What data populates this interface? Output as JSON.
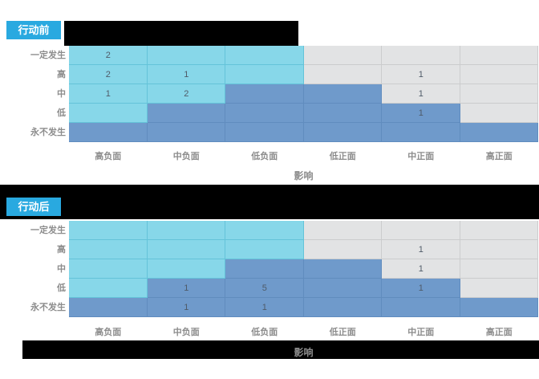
{
  "colors": {
    "chip": "#29A9E0",
    "cell_cyan": "#87D7E9",
    "line_cyan": "#64C3D9",
    "cell_gray": "#E2E3E4",
    "line_gray": "#CBCCCD",
    "cell_blue": "#6F9ACB",
    "line_blue": "#608CBE",
    "label": "#8C8C8C",
    "value": "#4F5B68",
    "redaction": "#000000"
  },
  "chart_data": [
    {
      "type": "heatmap",
      "section_tag": "行动前",
      "row_labels": [
        "一定发生",
        "高",
        "中",
        "低",
        "永不发生"
      ],
      "col_labels": [
        "高负面",
        "中负面",
        "低负面",
        "低正面",
        "中正面",
        "高正面"
      ],
      "xlabel": "影响",
      "zones": [
        [
          "cyan",
          "cyan",
          "cyan",
          "gray",
          "gray",
          "gray"
        ],
        [
          "cyan",
          "cyan",
          "cyan",
          "gray",
          "gray",
          "gray"
        ],
        [
          "cyan",
          "cyan",
          "blue",
          "blue",
          "gray",
          "gray"
        ],
        [
          "cyan",
          "blue",
          "blue",
          "blue",
          "blue",
          "gray"
        ],
        [
          "blue",
          "blue",
          "blue",
          "blue",
          "blue",
          "blue"
        ]
      ],
      "values": [
        [
          2,
          null,
          null,
          null,
          null,
          null
        ],
        [
          2,
          1,
          null,
          null,
          1,
          null
        ],
        [
          1,
          2,
          null,
          null,
          1,
          null
        ],
        [
          null,
          null,
          null,
          null,
          1,
          null
        ],
        [
          null,
          null,
          null,
          null,
          null,
          null
        ]
      ]
    },
    {
      "type": "heatmap",
      "section_tag": "行动后",
      "row_labels": [
        "一定发生",
        "高",
        "中",
        "低",
        "永不发生"
      ],
      "col_labels": [
        "高负面",
        "中负面",
        "低负面",
        "低正面",
        "中正面",
        "高正面"
      ],
      "xlabel": "影响",
      "zones": [
        [
          "cyan",
          "cyan",
          "cyan",
          "gray",
          "gray",
          "gray"
        ],
        [
          "cyan",
          "cyan",
          "cyan",
          "gray",
          "gray",
          "gray"
        ],
        [
          "cyan",
          "cyan",
          "blue",
          "blue",
          "gray",
          "gray"
        ],
        [
          "cyan",
          "blue",
          "blue",
          "blue",
          "blue",
          "gray"
        ],
        [
          "blue",
          "blue",
          "blue",
          "blue",
          "blue",
          "blue"
        ]
      ],
      "values": [
        [
          null,
          null,
          null,
          null,
          null,
          null
        ],
        [
          null,
          null,
          null,
          null,
          1,
          null
        ],
        [
          null,
          null,
          null,
          null,
          1,
          null
        ],
        [
          null,
          1,
          5,
          null,
          1,
          null
        ],
        [
          null,
          1,
          1,
          null,
          null,
          null
        ]
      ]
    }
  ]
}
